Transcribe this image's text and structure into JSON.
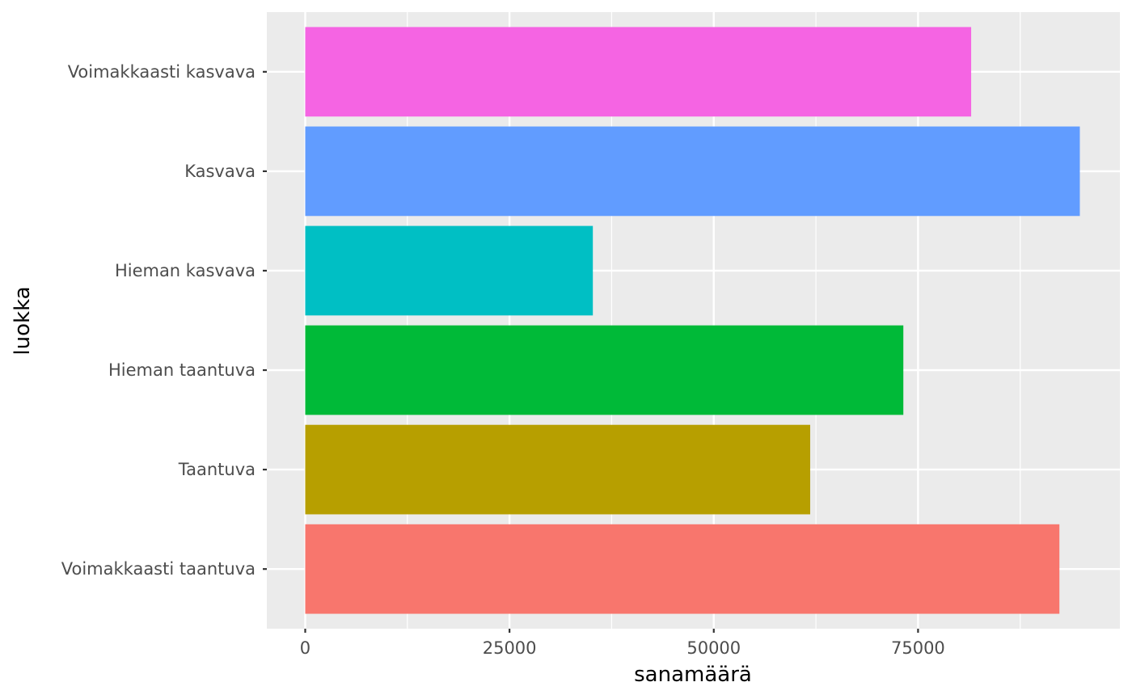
{
  "chart_data": {
    "type": "bar",
    "orientation": "horizontal",
    "xlabel": "sanamäärä",
    "ylabel": "luokka",
    "xlim": [
      -4700,
      99700
    ],
    "x_ticks": [
      0,
      25000,
      50000,
      75000
    ],
    "x_tick_labels": [
      "0",
      "25000",
      "50000",
      "75000"
    ],
    "categories": [
      "Voimakkaasti taantuva",
      "Taantuva",
      "Hieman taantuva",
      "Hieman kasvava",
      "Kasvava",
      "Voimakkaasti kasvava"
    ],
    "values": [
      92300,
      61800,
      73200,
      35200,
      94800,
      81500
    ],
    "colors": [
      "#F8766D",
      "#B79F00",
      "#00BA38",
      "#00BFC4",
      "#619CFF",
      "#F564E3"
    ],
    "panel_background": "#EBEBEB",
    "grid": true,
    "legend": "none"
  }
}
